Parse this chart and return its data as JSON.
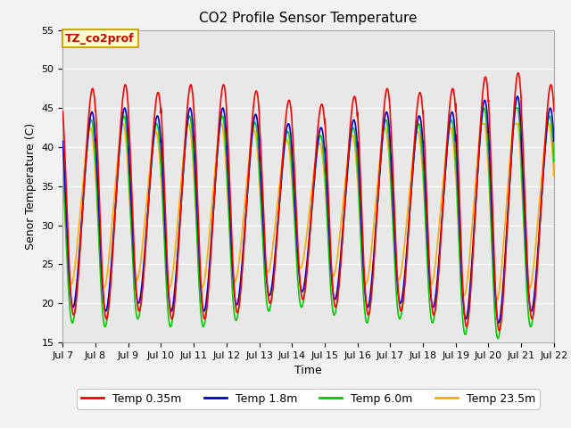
{
  "title": "CO2 Profile Sensor Temperature",
  "xlabel": "Time",
  "ylabel": "Senor Temperature (C)",
  "ylim": [
    15,
    55
  ],
  "xlim_days": [
    7,
    22
  ],
  "xtick_labels": [
    "Jul 7",
    "Jul 8",
    "Jul 9",
    "Jul 10",
    "Jul 11",
    "Jul 12",
    "Jul 13",
    "Jul 14",
    "Jul 15",
    "Jul 16",
    "Jul 17",
    "Jul 18",
    "Jul 19",
    "Jul 20",
    "Jul 21",
    "Jul 22"
  ],
  "ytick_values": [
    15,
    20,
    25,
    30,
    35,
    40,
    45,
    50,
    55
  ],
  "legend_labels": [
    "Temp 0.35m",
    "Temp 1.8m",
    "Temp 6.0m",
    "Temp 23.5m"
  ],
  "legend_colors": [
    "#ff0000",
    "#0000cc",
    "#00cc00",
    "#ffaa00"
  ],
  "annotation_text": "TZ_co2prof",
  "annotation_color": "#cc0000",
  "annotation_bg": "#ffffcc",
  "annotation_border": "#ccaa00",
  "bg_color": "#e8e8e8",
  "grid_color": "#ffffff",
  "fig_bg": "#f2f2f2",
  "title_fontsize": 11,
  "label_fontsize": 9,
  "tick_fontsize": 8,
  "legend_fontsize": 9
}
